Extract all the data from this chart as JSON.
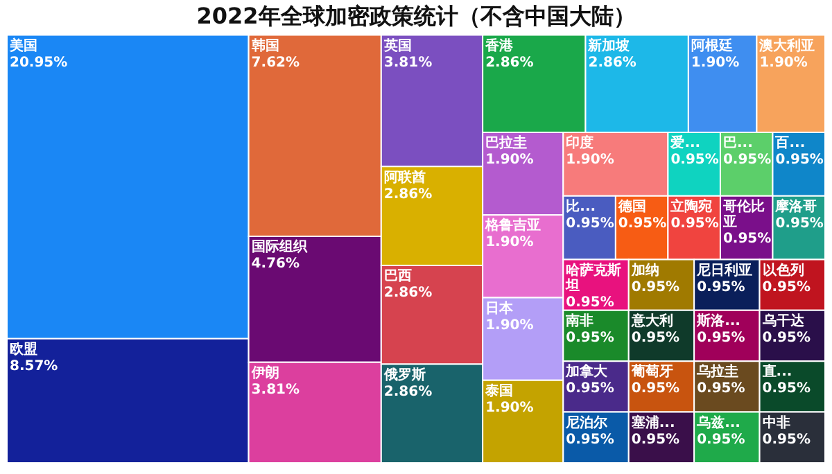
{
  "chart_data": {
    "type": "other",
    "title": "2022年全球加密政策统计（不含中国大陆）",
    "categories": [
      "美国",
      "欧盟",
      "韩国",
      "国际组织",
      "伊朗",
      "英国",
      "阿联酋",
      "巴西",
      "俄罗斯",
      "香港",
      "新加坡",
      "阿根廷",
      "澳大利亚",
      "巴拉圭",
      "格鲁吉亚",
      "日本",
      "泰国",
      "印度",
      "爱...",
      "巴...",
      "百...",
      "比...",
      "德国",
      "立陶宛",
      "哥伦比亚",
      "摩洛哥",
      "哈萨克斯坦",
      "南非",
      "加拿大",
      "尼泊尔",
      "加纳",
      "尼日利亚",
      "以色列",
      "意大利",
      "葡萄牙",
      "塞浦...",
      "斯洛...",
      "乌干达",
      "乌拉圭",
      "乌兹...",
      "直...",
      "中非"
    ],
    "values": [
      20.95,
      8.57,
      7.62,
      4.76,
      3.81,
      3.81,
      2.86,
      2.86,
      2.86,
      2.86,
      2.86,
      1.9,
      1.9,
      1.9,
      1.9,
      1.9,
      1.9,
      1.9,
      0.95,
      0.95,
      0.95,
      0.95,
      0.95,
      0.95,
      0.95,
      0.95,
      0.95,
      0.95,
      0.95,
      0.95,
      0.95,
      0.95,
      0.95,
      0.95,
      0.95,
      0.95,
      0.95,
      0.95,
      0.95,
      0.95,
      0.95,
      0.95
    ],
    "value_labels": [
      "20.95%",
      "8.57%",
      "7.62%",
      "4.76%",
      "3.81%",
      "3.81%",
      "2.86%",
      "2.86%",
      "2.86%",
      "2.86%",
      "2.86%",
      "1.90%",
      "1.90%",
      "1.90%",
      "1.90%",
      "1.90%",
      "1.90%",
      "1.90%",
      "0.95%",
      "0.95%",
      "0.95%",
      "0.95%",
      "0.95%",
      "0.95%",
      "0.95%",
      "0.95%",
      "0.95%",
      "0.95%",
      "0.95%",
      "0.95%",
      "0.95%",
      "0.95%",
      "0.95%",
      "0.95%",
      "0.95%",
      "0.95%",
      "0.95%",
      "0.95%",
      "0.95%",
      "0.95%",
      "0.95%",
      "0.95%"
    ],
    "colors": [
      "#1a87f5",
      "#13219a",
      "#e0693a",
      "#6a0a72",
      "#dc3f9e",
      "#7b4fc0",
      "#d9b000",
      "#d6434f",
      "#19636b",
      "#1aa84a",
      "#1db8e8",
      "#3f8ef0",
      "#f7a35c",
      "#b45bcf",
      "#e86ecf",
      "#b39ef7",
      "#c4a300",
      "#f77b7b",
      "#0fd3c0",
      "#5ccf6a",
      "#0f86c9",
      "#4a5cc0",
      "#f75c14",
      "#f0443f",
      "#7a0f8a",
      "#1f9e8a",
      "#e8127e",
      "#1a8a2a",
      "#4a2a8a",
      "#0a5aa8",
      "#a07a00",
      "#0a1f5a",
      "#c0141f",
      "#0f3a2a",
      "#c8540f",
      "#3a0f4a",
      "#a0005a",
      "#2a0f4a",
      "#6a4a1f",
      "#1faa4a",
      "#0a4a2a",
      "#2a2f3a"
    ]
  }
}
